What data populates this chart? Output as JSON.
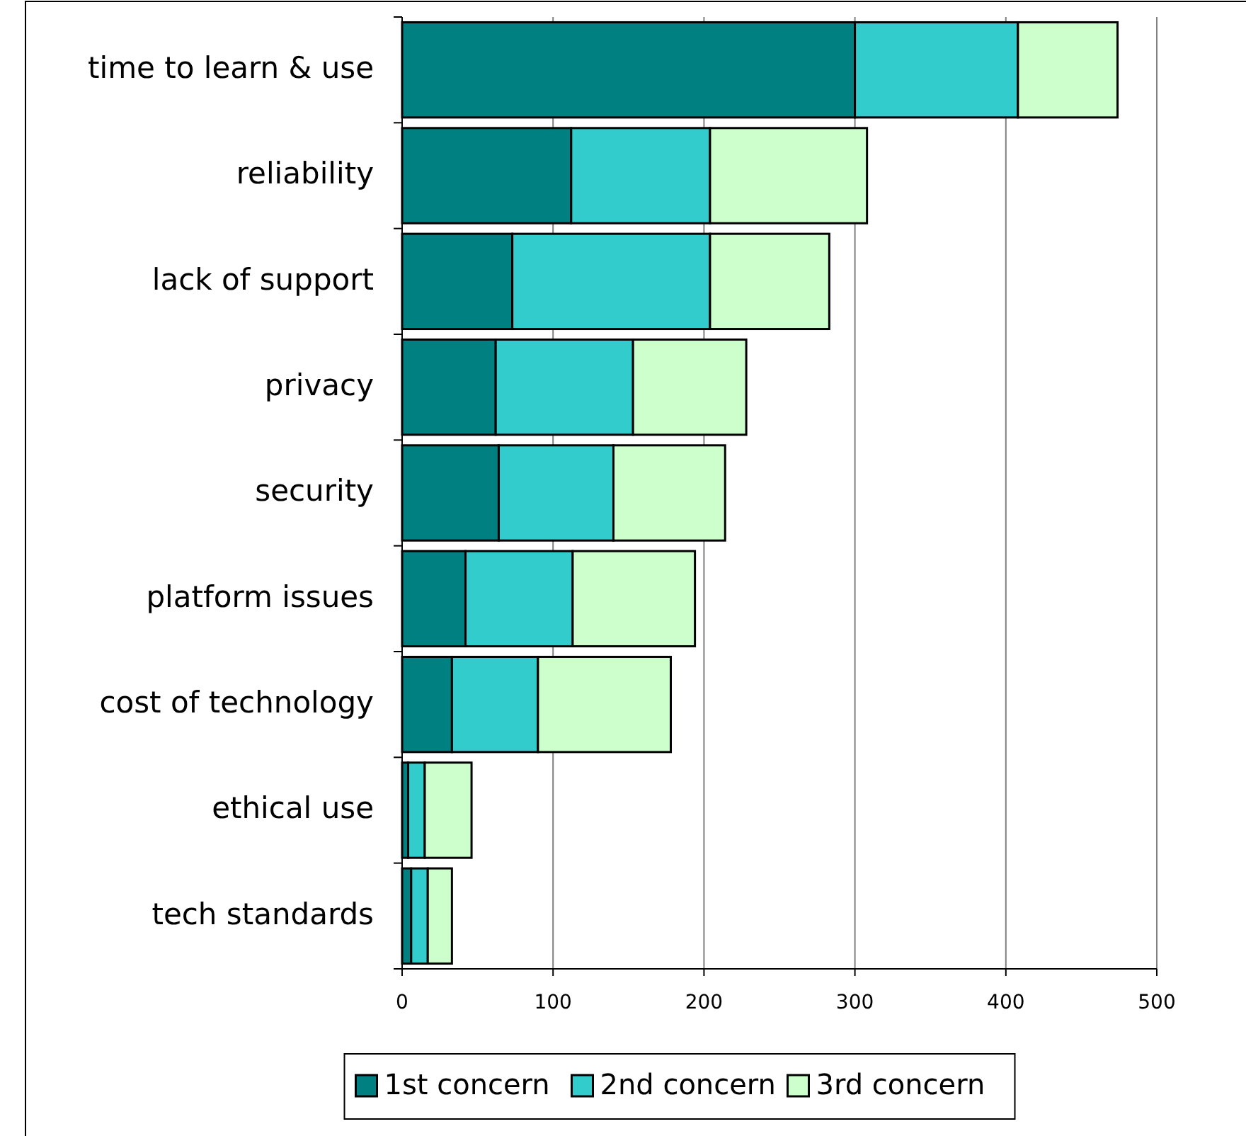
{
  "chart_data": {
    "type": "bar",
    "orientation": "horizontal",
    "stacked": true,
    "categories": [
      "time to learn & use",
      "reliability",
      "lack of support",
      "privacy",
      "security",
      "platform issues",
      "cost of technology",
      "ethical use",
      "tech standards"
    ],
    "series": [
      {
        "name": "1st concern",
        "color": "#008080",
        "values": [
          300,
          112,
          73,
          62,
          64,
          42,
          33,
          4,
          6
        ]
      },
      {
        "name": "2nd concern",
        "color": "#33cccc",
        "values": [
          108,
          92,
          131,
          91,
          76,
          71,
          57,
          11,
          11
        ]
      },
      {
        "name": "3rd concern",
        "color": "#ccffcc",
        "values": [
          66,
          104,
          79,
          75,
          74,
          81,
          88,
          31,
          16
        ]
      }
    ],
    "xlim": [
      0,
      500
    ],
    "xticks": [
      0,
      100,
      200,
      300,
      400,
      500
    ],
    "grid": "x",
    "legend": "bottom"
  }
}
